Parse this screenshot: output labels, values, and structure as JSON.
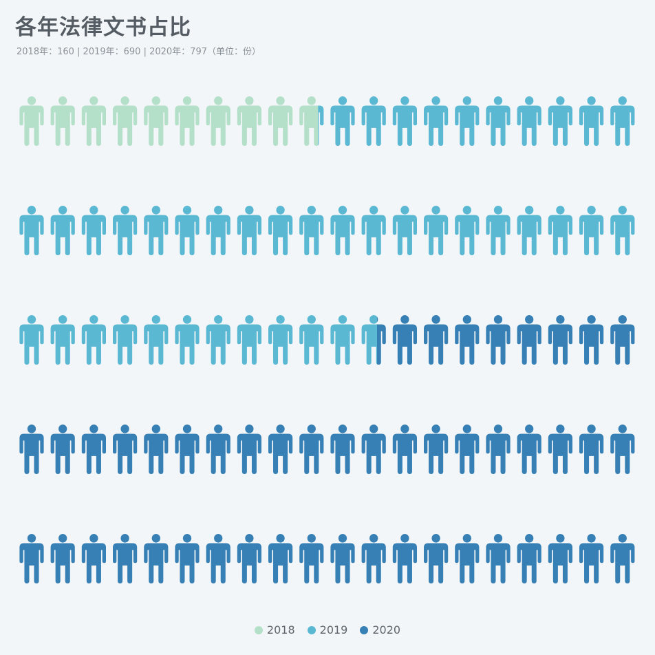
{
  "title": "各年法律文书占比",
  "subtitle": "2018年：160 | 2019年：690 | 2020年：797（单位：份）",
  "chart_data": {
    "type": "pictogram",
    "icon": "person-icon",
    "total_icons": 100,
    "icons_per_row": 20,
    "rows": 5,
    "series": [
      {
        "name": "2018",
        "value": 160,
        "color": "#b4dfc9"
      },
      {
        "name": "2019",
        "value": 690,
        "color": "#5bb8d3"
      },
      {
        "name": "2020",
        "value": 797,
        "color": "#3780b5"
      }
    ],
    "legend_position": "bottom-center"
  }
}
